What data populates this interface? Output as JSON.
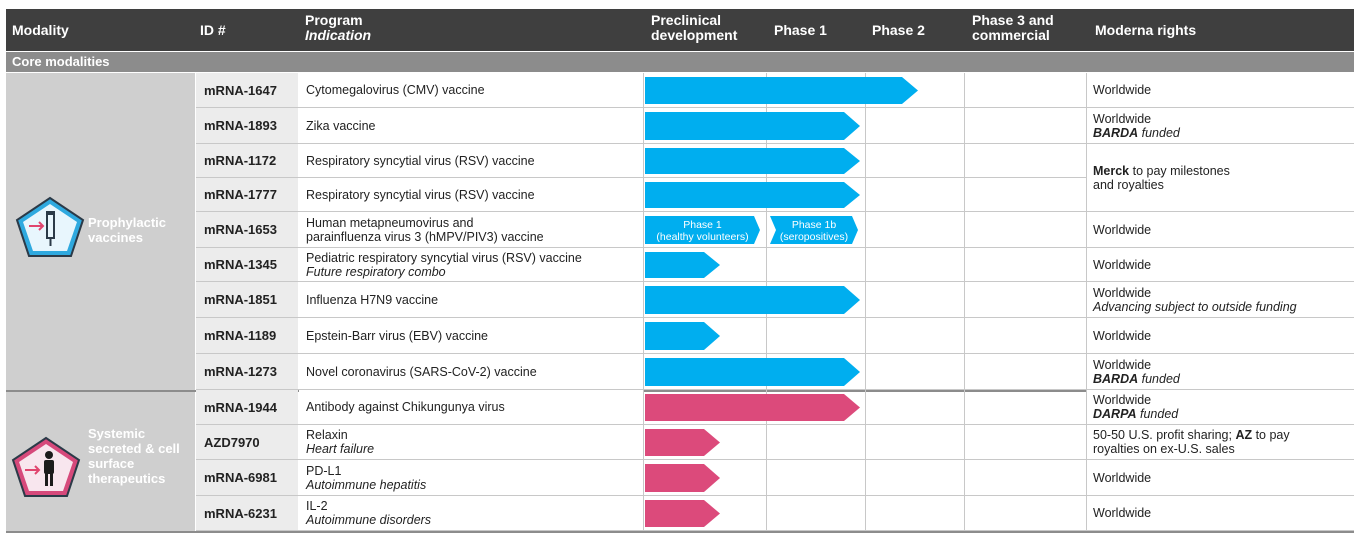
{
  "header": {
    "modality": "Modality",
    "id": "ID #",
    "program": "Program",
    "indication": "Indication",
    "preclinical": "Preclinical development",
    "phase1": "Phase 1",
    "phase2": "Phase 2",
    "phase3": "Phase 3 and commercial",
    "rights": "Moderna rights"
  },
  "section": "Core modalities",
  "groups": [
    {
      "label": "Prophylactic vaccines",
      "icon": "syringe-icon",
      "color": "#29aee8"
    },
    {
      "label": "Systemic secreted & cell surface therapeutics",
      "icon": "person-icon",
      "color": "#d6497b"
    }
  ],
  "colors": {
    "vaccine": "#00aeef",
    "therapeutic": "#dc4a7b",
    "header": "#3f3f3f"
  },
  "rows": [
    {
      "id": "mRNA-1647",
      "program": "Cytomegalovirus (CMV) vaccine",
      "indication": "",
      "stage": "Phase 2"
    },
    {
      "id": "mRNA-1893",
      "program": "Zika vaccine",
      "indication": "",
      "stage": "Phase 1"
    },
    {
      "id": "mRNA-1172",
      "program": "Respiratory syncytial virus (RSV) vaccine",
      "indication": "",
      "stage": "Phase 1"
    },
    {
      "id": "mRNA-1777",
      "program": "Respiratory syncytial virus (RSV) vaccine",
      "indication": "",
      "stage": "Phase 1"
    },
    {
      "id": "mRNA-1653",
      "program": "Human metapneumovirus and",
      "program2": "parainfluenza virus 3 (hMPV/PIV3) vaccine",
      "indication": "",
      "stage": "Phase 1b",
      "bar_labels": [
        [
          "Phase 1",
          "(healthy volunteers)"
        ],
        [
          "Phase 1b",
          "(seropositives)"
        ]
      ]
    },
    {
      "id": "mRNA-1345",
      "program": "Pediatric respiratory syncytial virus (RSV) vaccine",
      "indication": "Future respiratory combo",
      "stage": "Preclinical"
    },
    {
      "id": "mRNA-1851",
      "program": "Influenza H7N9 vaccine",
      "indication": "",
      "stage": "Phase 1"
    },
    {
      "id": "mRNA-1189",
      "program": "Epstein-Barr virus (EBV) vaccine",
      "indication": "",
      "stage": "Preclinical"
    },
    {
      "id": "mRNA-1273",
      "program": "Novel coronavirus (SARS-CoV-2) vaccine",
      "indication": "",
      "stage": "Phase 1"
    },
    {
      "id": "mRNA-1944",
      "program": "Antibody against Chikungunya virus",
      "indication": "",
      "stage": "Phase 1"
    },
    {
      "id": "AZD7970",
      "program": "Relaxin",
      "indication": "Heart failure",
      "stage": "Preclinical"
    },
    {
      "id": "mRNA-6981",
      "program": "PD-L1",
      "indication": "Autoimmune hepatitis",
      "stage": "Preclinical"
    },
    {
      "id": "mRNA-6231",
      "program": "IL-2",
      "indication": "Autoimmune disorders",
      "stage": "Preclinical"
    }
  ],
  "rights": [
    {
      "line1": "Worldwide"
    },
    {
      "line1": "Worldwide",
      "line2_bold": "BARDA",
      "line2_rest": " funded"
    },
    {
      "bold": "Merck",
      "line1_rest": " to pay milestones",
      "line2": "and royalties"
    },
    {
      "line1": "Worldwide"
    },
    {
      "line1": "Worldwide"
    },
    {
      "line1": "Worldwide",
      "line2_italic": "Advancing subject to outside funding"
    },
    {
      "line1": "Worldwide"
    },
    {
      "line1": "Worldwide",
      "line2_bold": "BARDA",
      "line2_rest": " funded"
    },
    {
      "line1": "Worldwide",
      "line2_bold": "DARPA",
      "line2_rest": " funded"
    },
    {
      "line1_pre": "50-50 U.S. profit sharing; ",
      "bold": "AZ",
      "line1_rest": " to pay",
      "line2": "royalties on ex-U.S. sales"
    },
    {
      "line1": "Worldwide"
    },
    {
      "line1": "Worldwide"
    }
  ]
}
